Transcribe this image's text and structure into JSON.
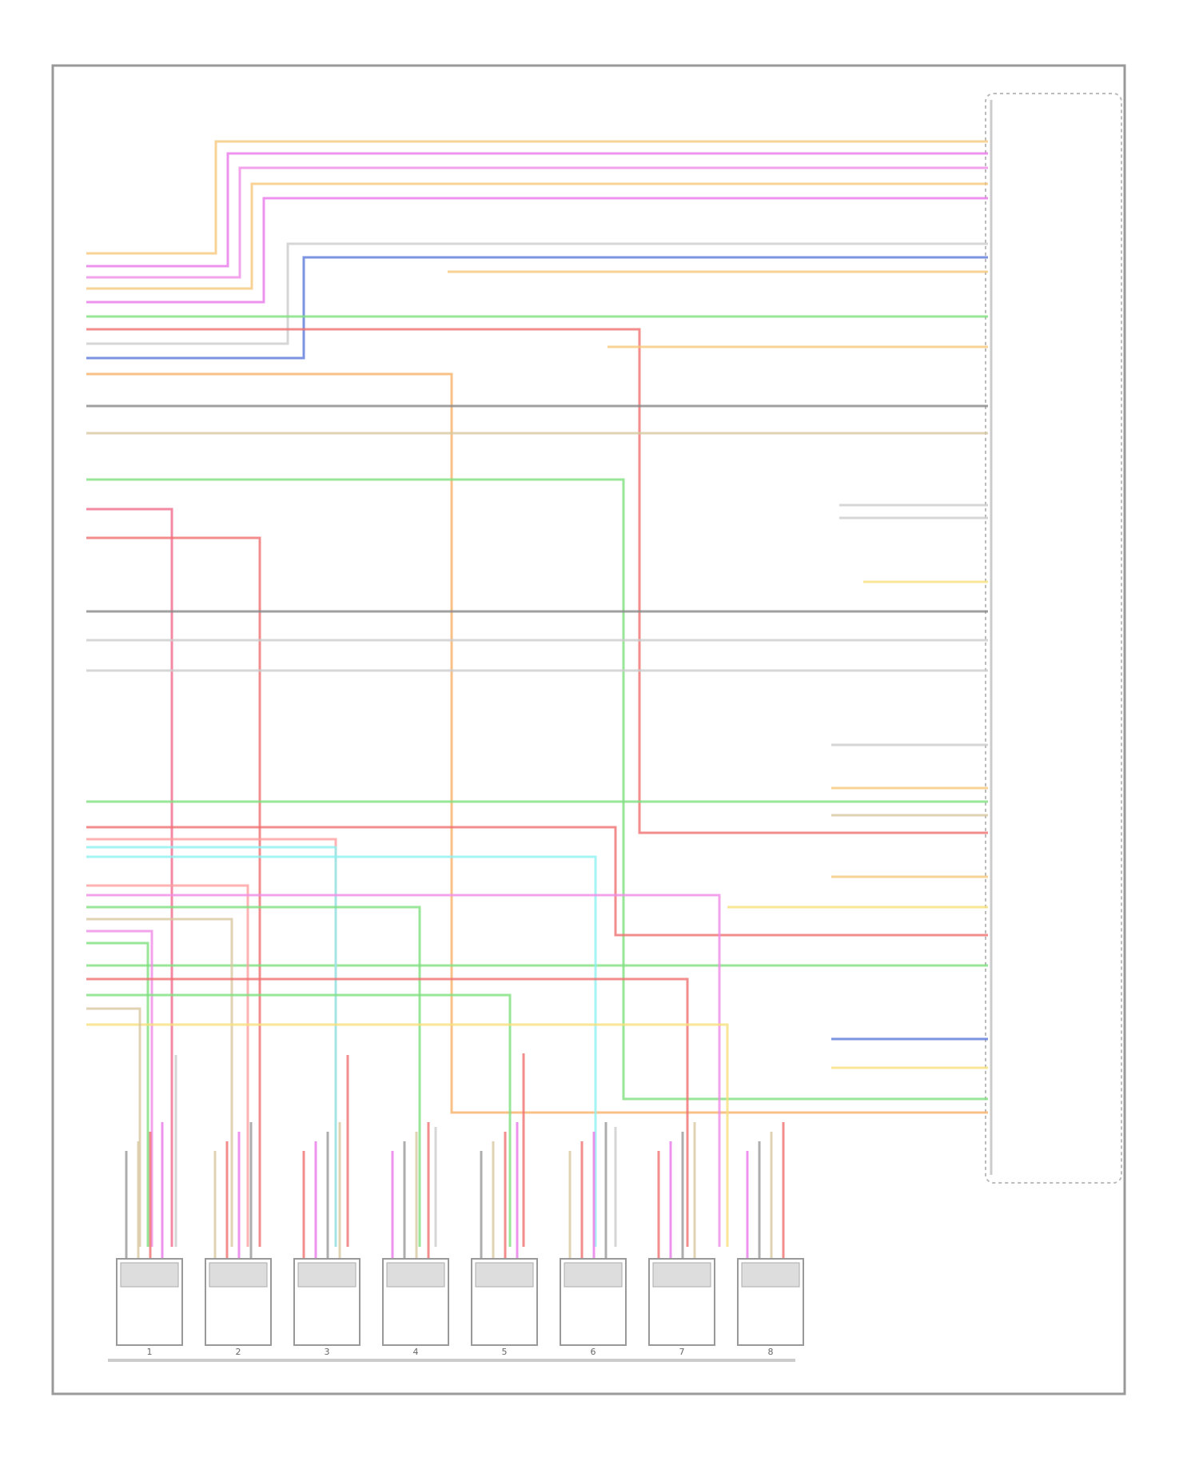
{
  "injectors": [
    {
      "label": "1"
    },
    {
      "label": "2"
    },
    {
      "label": "3"
    },
    {
      "label": "4"
    },
    {
      "label": "5"
    },
    {
      "label": "6"
    },
    {
      "label": "7"
    },
    {
      "label": "8"
    }
  ]
}
